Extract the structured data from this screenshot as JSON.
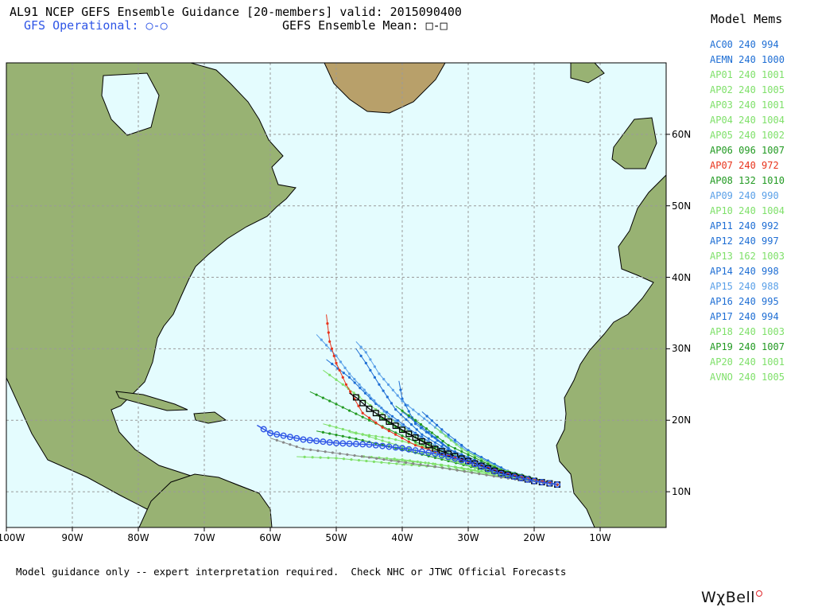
{
  "header": {
    "title": "AL91 NCEP GEFS Ensemble Guidance [20-members] valid: 2015090400",
    "gfs_operational": "GFS Operational: ○-○",
    "ensemble_mean": "GEFS Ensemble Mean: □-□"
  },
  "legend": {
    "title": "Model Mems",
    "items": [
      {
        "label": "AC00 240 994",
        "color": "#1e6ed4"
      },
      {
        "label": "AEMN 240 1000",
        "color": "#1e6ed4"
      },
      {
        "label": "AP01 240 1001",
        "color": "#7fe06a"
      },
      {
        "label": "AP02 240 1005",
        "color": "#7fe06a"
      },
      {
        "label": "AP03 240 1001",
        "color": "#7fe06a"
      },
      {
        "label": "AP04 240 1004",
        "color": "#7fe06a"
      },
      {
        "label": "AP05 240 1002",
        "color": "#7fe06a"
      },
      {
        "label": "AP06 096 1007",
        "color": "#229a22"
      },
      {
        "label": "AP07 240 972",
        "color": "#e8341c"
      },
      {
        "label": "AP08 132 1010",
        "color": "#229a22"
      },
      {
        "label": "AP09 240 990",
        "color": "#5aa0e8"
      },
      {
        "label": "AP10 240 1004",
        "color": "#7fe06a"
      },
      {
        "label": "AP11 240 992",
        "color": "#1e6ed4"
      },
      {
        "label": "AP12 240 997",
        "color": "#1e6ed4"
      },
      {
        "label": "AP13 162 1003",
        "color": "#7fe06a"
      },
      {
        "label": "AP14 240 998",
        "color": "#1e6ed4"
      },
      {
        "label": "AP15 240 988",
        "color": "#5aa0e8"
      },
      {
        "label": "AP16 240 995",
        "color": "#1e6ed4"
      },
      {
        "label": "AP17 240 994",
        "color": "#1e6ed4"
      },
      {
        "label": "AP18 240 1003",
        "color": "#7fe06a"
      },
      {
        "label": "AP19 240 1007",
        "color": "#229a22"
      },
      {
        "label": "AP20 240 1001",
        "color": "#7fe06a"
      },
      {
        "label": "AVNO 240 1005",
        "color": "#7fe06a"
      }
    ]
  },
  "map": {
    "lon_labels": [
      "100W",
      "90W",
      "80W",
      "70W",
      "60W",
      "50W",
      "40W",
      "30W",
      "20W",
      "10W"
    ],
    "lat_labels": [
      "60N",
      "50N",
      "40N",
      "30N",
      "20N",
      "10N"
    ],
    "colors": {
      "ocean": "#e4fcfe",
      "land": "#98b273",
      "grid": "#9a9a9a",
      "gfs_operational": "#2e55e6",
      "ensemble_mean": "#000000"
    },
    "tracks": {
      "operational": [
        [
          -16.5,
          11.0
        ],
        [
          -20,
          11.5
        ],
        [
          -25,
          12.5
        ],
        [
          -30,
          14.2
        ],
        [
          -35,
          15.3
        ],
        [
          -40,
          16.1
        ],
        [
          -45,
          16.6
        ],
        [
          -50,
          16.8
        ],
        [
          -55,
          17.3
        ],
        [
          -60,
          18.2
        ],
        [
          -62,
          19.3
        ]
      ],
      "mean": [
        [
          -16.5,
          11.0
        ],
        [
          -20,
          11.5
        ],
        [
          -25,
          12.6
        ],
        [
          -30,
          14.3
        ],
        [
          -35,
          16.0
        ],
        [
          -39,
          18.1
        ],
        [
          -42,
          19.8
        ],
        [
          -45,
          21.6
        ],
        [
          -47,
          23.2
        ],
        [
          -48,
          23.8
        ]
      ],
      "ap07": [
        [
          -16.5,
          11.0
        ],
        [
          -25,
          12.8
        ],
        [
          -33,
          15.0
        ],
        [
          -38,
          16.5
        ],
        [
          -43,
          19.0
        ],
        [
          -46,
          21.0
        ],
        [
          -48.5,
          25.0
        ],
        [
          -50,
          28.0
        ],
        [
          -51,
          31.0
        ],
        [
          -51.5,
          34.8
        ]
      ],
      "members": [
        {
          "color": "#7fe06a",
          "pts": [
            [
              -16.5,
              11.0
            ],
            [
              -25,
              12.2
            ],
            [
              -33,
              13.6
            ],
            [
              -40,
              14.5
            ],
            [
              -47,
              15.0
            ]
          ]
        },
        {
          "color": "#7fe06a",
          "pts": [
            [
              -16.5,
              11.0
            ],
            [
              -25,
              12.8
            ],
            [
              -33,
              15.5
            ],
            [
              -39,
              18.5
            ],
            [
              -44,
              21.5
            ],
            [
              -49,
              25.0
            ],
            [
              -52,
              27.0
            ]
          ]
        },
        {
          "color": "#7fe06a",
          "pts": [
            [
              -16.5,
              11.0
            ],
            [
              -25,
              12.1
            ],
            [
              -34,
              13.4
            ],
            [
              -42,
              14.0
            ],
            [
              -50,
              14.7
            ],
            [
              -56,
              14.9
            ]
          ]
        },
        {
          "color": "#229a22",
          "pts": [
            [
              -16.5,
              11.0
            ],
            [
              -25,
              12.7
            ],
            [
              -33,
              15.0
            ],
            [
              -39,
              17.4
            ],
            [
              -45,
              20.0
            ],
            [
              -51,
              22.7
            ],
            [
              -54,
              24.0
            ]
          ]
        },
        {
          "color": "#229a22",
          "pts": [
            [
              -16.5,
              11.0
            ],
            [
              -25,
              12.4
            ],
            [
              -33,
              14.3
            ],
            [
              -40,
              15.9
            ],
            [
              -47,
              17.4
            ],
            [
              -53,
              18.5
            ]
          ]
        },
        {
          "color": "#229a22",
          "pts": [
            [
              -16.5,
              11.0
            ],
            [
              -25,
              12.9
            ],
            [
              -33,
              15.4
            ],
            [
              -40,
              18.5
            ],
            [
              -44,
              20.8
            ]
          ]
        },
        {
          "color": "#1e6ed4",
          "pts": [
            [
              -16.5,
              11.0
            ],
            [
              -25,
              12.7
            ],
            [
              -32,
              15.2
            ],
            [
              -37,
              18.0
            ],
            [
              -41,
              21.5
            ],
            [
              -43.5,
              25.0
            ],
            [
              -45.5,
              28.0
            ],
            [
              -47,
              30.0
            ]
          ]
        },
        {
          "color": "#1e6ed4",
          "pts": [
            [
              -16.5,
              11.0
            ],
            [
              -25,
              12.9
            ],
            [
              -33,
              16.0
            ],
            [
              -38,
              19.5
            ],
            [
              -40,
              23.0
            ],
            [
              -40.5,
              25.5
            ]
          ]
        },
        {
          "color": "#1e6ed4",
          "pts": [
            [
              -16.5,
              11.0
            ],
            [
              -25,
              12.6
            ],
            [
              -33,
              15.3
            ],
            [
              -39,
              18.8
            ],
            [
              -44,
              22.3
            ],
            [
              -48,
              26.0
            ],
            [
              -51.5,
              28.5
            ]
          ]
        },
        {
          "color": "#5aa0e8",
          "pts": [
            [
              -16.5,
              11.0
            ],
            [
              -24,
              12.8
            ],
            [
              -30,
              15.6
            ],
            [
              -35,
              19.0
            ],
            [
              -40,
              22.7
            ],
            [
              -43.5,
              26.5
            ],
            [
              -45.5,
              29.5
            ],
            [
              -47,
              31.0
            ]
          ]
        },
        {
          "color": "#5aa0e8",
          "pts": [
            [
              -16.5,
              11.0
            ],
            [
              -25,
              12.7
            ],
            [
              -33,
              15.5
            ],
            [
              -38,
              18.0
            ],
            [
              -42,
              20.5
            ],
            [
              -45,
              23.5
            ],
            [
              -48,
              26.5
            ],
            [
              -50,
              29.0
            ],
            [
              -53,
              32.0
            ]
          ]
        },
        {
          "color": "#1e6ed4",
          "pts": [
            [
              -16.5,
              11.0
            ],
            [
              -25,
              12.7
            ],
            [
              -32,
              15.4
            ],
            [
              -36,
              18.3
            ],
            [
              -40,
              21.2
            ]
          ]
        },
        {
          "color": "#1e6ed4",
          "pts": [
            [
              -16.5,
              11.0
            ],
            [
              -24,
              12.9
            ],
            [
              -30,
              15.8
            ],
            [
              -34,
              18.7
            ],
            [
              -37,
              21.2
            ]
          ]
        },
        {
          "color": "#7fe06a",
          "pts": [
            [
              -16.5,
              11.0
            ],
            [
              -24,
              12.6
            ],
            [
              -30,
              14.5
            ],
            [
              -36,
              16.2
            ],
            [
              -42,
              17.5
            ],
            [
              -48,
              18.3
            ]
          ]
        },
        {
          "color": "#7fe06a",
          "pts": [
            [
              -16.5,
              11.0
            ],
            [
              -25,
              13.1
            ],
            [
              -31,
              16.0
            ],
            [
              -35,
              19.0
            ]
          ]
        },
        {
          "color": "#7fe06a",
          "pts": [
            [
              -16.5,
              11.0
            ],
            [
              -24,
              12.2
            ],
            [
              -30,
              13.2
            ],
            [
              -36,
              14.0
            ],
            [
              -42,
              14.5
            ]
          ]
        },
        {
          "color": "#7fe06a",
          "pts": [
            [
              -16.5,
              11.0
            ],
            [
              -23,
              12.0
            ],
            [
              -29,
              13.4
            ],
            [
              -34,
              15.0
            ],
            [
              -38,
              16.8
            ]
          ]
        },
        {
          "color": "#7fe06a",
          "pts": [
            [
              -16.5,
              11.0
            ],
            [
              -25,
              12.5
            ],
            [
              -33,
              14.5
            ],
            [
              -40,
              16.3
            ],
            [
              -46,
              18.0
            ],
            [
              -52,
              19.5
            ]
          ]
        },
        {
          "color": "#229a22",
          "pts": [
            [
              -16.5,
              11.0
            ],
            [
              -25,
              13.0
            ],
            [
              -33,
              16.5
            ],
            [
              -38,
              20.0
            ],
            [
              -41,
              22.0
            ]
          ]
        },
        {
          "color": "#888888",
          "pts": [
            [
              -16.5,
              11.0
            ],
            [
              -25,
              12.0
            ],
            [
              -35,
              13.5
            ],
            [
              -45,
              14.8
            ],
            [
              -55,
              16.0
            ],
            [
              -60,
              17.5
            ]
          ]
        }
      ]
    }
  },
  "footer": {
    "disclaimer": "Model guidance only -- expert interpretation required.  Check NHC or JTWC Official Forecasts",
    "logo": "WχBell"
  }
}
